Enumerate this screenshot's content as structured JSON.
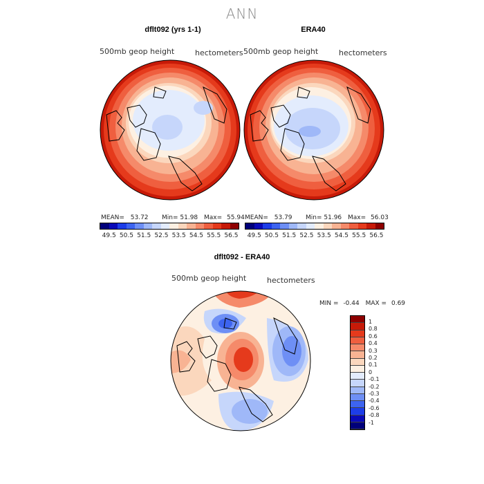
{
  "page": {
    "title": "ANN"
  },
  "panel_left": {
    "title": "dflt092 (yrs 1-1)",
    "field_label": "500mb  geop  height",
    "units": "hectometers",
    "mean_label": "MEAN=",
    "mean": "53.72",
    "min_label": "Min=",
    "min": "51.98",
    "max_label": "Max=",
    "max": "55.94"
  },
  "panel_right": {
    "title": "ERA40",
    "field_label": "500mb  geop  height",
    "units": "hectometers",
    "mean_label": "MEAN=",
    "mean": "53.79",
    "min_label": "Min=",
    "min": "51.96",
    "max_label": "Max=",
    "max": "56.03"
  },
  "panel_diff": {
    "title": "dflt092 - ERA40",
    "field_label": "500mb  geop  height",
    "units": "hectometers",
    "min_label": "MIN =",
    "min": "-0.44",
    "max_label": "MAX =",
    "max": "0.69"
  },
  "colorbar_main": {
    "ticks": [
      "49.5",
      "50.5",
      "51.5",
      "52.5",
      "53.5",
      "54.5",
      "55.5",
      "56.5"
    ],
    "colors": [
      "#00007a",
      "#0a0ab8",
      "#1d3de8",
      "#3d64f0",
      "#6e8ff5",
      "#9fb8f8",
      "#c6d6fb",
      "#e3ecfd",
      "#fdf0e2",
      "#fbd7bd",
      "#f8b393",
      "#f58a6a",
      "#ef5f3f",
      "#e53a1c",
      "#c71a08",
      "#8e0000"
    ]
  },
  "colorbar_diff": {
    "labels": [
      "1",
      "0.8",
      "0.6",
      "0.4",
      "0.3",
      "0.2",
      "0.1",
      "0",
      "-0.1",
      "-0.2",
      "-0.3",
      "-0.4",
      "-0.6",
      "-0.8",
      "-1"
    ],
    "colors": [
      "#8e0000",
      "#c71a08",
      "#e53a1c",
      "#ef5f3f",
      "#f58a6a",
      "#f8b393",
      "#fbd7bd",
      "#fdf0e2",
      "#e3ecfd",
      "#c6d6fb",
      "#9fb8f8",
      "#6e8ff5",
      "#3d64f0",
      "#1d3de8",
      "#0a0ab8",
      "#00007a"
    ]
  },
  "icons": {
    "map_left": "polar-map-icon",
    "map_right": "polar-map-icon",
    "map_diff": "polar-map-icon"
  }
}
